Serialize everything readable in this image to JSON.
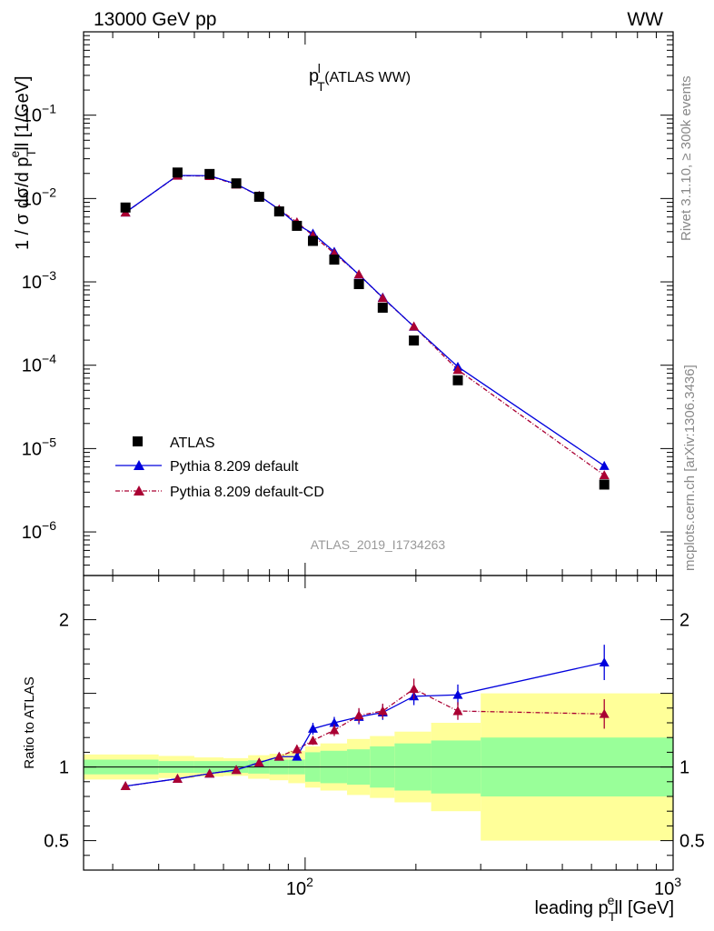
{
  "header": {
    "left": "13000 GeV pp",
    "right": "WW"
  },
  "plot_title": {
    "main": "p",
    "sup": "l",
    "sub": "T",
    "rest": " (ATLAS WW)"
  },
  "side_texts": {
    "rivet": "Rivet 3.1.10, ≥ 300k events",
    "mcplots": "mcplots.cern.ch [arXiv:1306.3436]"
  },
  "analysis_label": "ATLAS_2019_I1734263",
  "legend": {
    "atlas": "ATLAS",
    "pythia_default": "Pythia 8.209 default",
    "pythia_cd": "Pythia 8.209 default-CD"
  },
  "axis_labels": {
    "y_main": "1 / σ dσ/d p_T^ell [1/GeV]",
    "y_main_parts": {
      "pre": "1 / σ dσ/d p",
      "sub": "T",
      "sup": "e",
      "post": "ll [1/GeV]"
    },
    "y_ratio": "Ratio to ATLAS",
    "x": "leading p_T^ell [GeV]",
    "x_parts": {
      "pre": "leading p",
      "sub": "T",
      "sup": "e",
      "post": "ll [GeV]"
    }
  },
  "colors": {
    "atlas": "#000000",
    "pythia_default": "#0000dd",
    "pythia_cd": "#aa0033",
    "band_inner": "#99ff99",
    "band_outer": "#ffff99"
  },
  "chart_data": {
    "type": "line",
    "x_scale": "log",
    "x_range": [
      25,
      1000
    ],
    "main": {
      "y_scale": "log",
      "y_range": [
        3e-07,
        1
      ],
      "y_ticks": [
        {
          "v": 1e-06,
          "m": "10",
          "e": "−6"
        },
        {
          "v": 1e-05,
          "m": "10",
          "e": "−5"
        },
        {
          "v": 0.0001,
          "m": "10",
          "e": "−4"
        },
        {
          "v": 0.001,
          "m": "10",
          "e": "−3"
        },
        {
          "v": 0.01,
          "m": "10",
          "e": "−2"
        },
        {
          "v": 0.1,
          "m": "10",
          "e": "−1"
        }
      ]
    },
    "ratio": {
      "y_range": [
        0.3,
        2.3
      ],
      "y_ticks": [
        {
          "v": 0.5,
          "t": "0.5"
        },
        {
          "v": 1,
          "t": "1"
        },
        {
          "v": 2,
          "t": "2"
        }
      ]
    },
    "x_ticks": [
      {
        "v": 100,
        "m": "10",
        "e": "2"
      },
      {
        "v": 1000,
        "m": "10",
        "e": "3"
      }
    ],
    "bins": [
      {
        "lo": 25,
        "hi": 40
      },
      {
        "lo": 40,
        "hi": 50
      },
      {
        "lo": 50,
        "hi": 60
      },
      {
        "lo": 60,
        "hi": 70
      },
      {
        "lo": 70,
        "hi": 80
      },
      {
        "lo": 80,
        "hi": 90
      },
      {
        "lo": 90,
        "hi": 100
      },
      {
        "lo": 100,
        "hi": 110
      },
      {
        "lo": 110,
        "hi": 130
      },
      {
        "lo": 130,
        "hi": 150
      },
      {
        "lo": 150,
        "hi": 175
      },
      {
        "lo": 175,
        "hi": 220
      },
      {
        "lo": 220,
        "hi": 300
      },
      {
        "lo": 300,
        "hi": 1000
      }
    ],
    "series": [
      {
        "name": "ATLAS",
        "marker": "square",
        "x": [
          32.5,
          45,
          55,
          65,
          75,
          85,
          95,
          105,
          120,
          140,
          162.5,
          197.5,
          260,
          650
        ],
        "y": [
          0.0078,
          0.0205,
          0.0197,
          0.0152,
          0.0105,
          0.007,
          0.0047,
          0.0031,
          0.00185,
          0.00094,
          0.00049,
          0.000198,
          6.6e-05,
          3.7e-06
        ]
      },
      {
        "name": "Pythia 8.209 default",
        "marker": "triangle",
        "x": [
          32.5,
          45,
          55,
          65,
          75,
          85,
          95,
          105,
          120,
          140,
          162.5,
          197.5,
          260,
          650
        ],
        "y": [
          0.0068,
          0.0189,
          0.0188,
          0.0149,
          0.0108,
          0.0074,
          0.0049,
          0.0038,
          0.0023,
          0.00122,
          0.00065,
          0.00029,
          9.6e-05,
          6.2e-06
        ]
      },
      {
        "name": "Pythia 8.209 default-CD",
        "marker": "triangle",
        "x": [
          32.5,
          45,
          55,
          65,
          75,
          85,
          95,
          105,
          120,
          140,
          162.5,
          197.5,
          260,
          650
        ],
        "y": [
          0.0068,
          0.0188,
          0.0186,
          0.0147,
          0.0108,
          0.0074,
          0.0052,
          0.0036,
          0.0022,
          0.00123,
          0.00064,
          0.000292,
          8.8e-05,
          4.8e-06
        ]
      }
    ],
    "ratio_series": [
      {
        "name": "Pythia 8.209 default",
        "x": [
          32.5,
          45,
          55,
          65,
          75,
          85,
          95,
          105,
          120,
          140,
          162.5,
          197.5,
          260,
          650
        ],
        "y": [
          0.87,
          0.92,
          0.955,
          0.98,
          1.03,
          1.07,
          1.07,
          1.26,
          1.3,
          1.34,
          1.37,
          1.48,
          1.49,
          1.71
        ],
        "err": [
          0.01,
          0.01,
          0.01,
          0.01,
          0.01,
          0.015,
          0.02,
          0.04,
          0.04,
          0.05,
          0.05,
          0.06,
          0.07,
          0.12
        ]
      },
      {
        "name": "Pythia 8.209 default-CD",
        "x": [
          32.5,
          45,
          55,
          65,
          75,
          85,
          95,
          105,
          120,
          140,
          162.5,
          197.5,
          260,
          650
        ],
        "y": [
          0.87,
          0.92,
          0.955,
          0.98,
          1.03,
          1.07,
          1.12,
          1.18,
          1.25,
          1.35,
          1.38,
          1.53,
          1.38,
          1.36
        ],
        "err": [
          0.01,
          0.01,
          0.01,
          0.01,
          0.01,
          0.015,
          0.03,
          0.03,
          0.04,
          0.05,
          0.05,
          0.07,
          0.06,
          0.1
        ]
      }
    ],
    "band_inner": [
      0.05,
      0.04,
      0.04,
      0.04,
      0.045,
      0.05,
      0.05,
      0.1,
      0.11,
      0.12,
      0.14,
      0.16,
      0.18,
      0.2
    ],
    "band_outer": [
      0.085,
      0.075,
      0.065,
      0.06,
      0.08,
      0.09,
      0.11,
      0.14,
      0.16,
      0.19,
      0.21,
      0.24,
      0.3,
      0.5
    ]
  }
}
